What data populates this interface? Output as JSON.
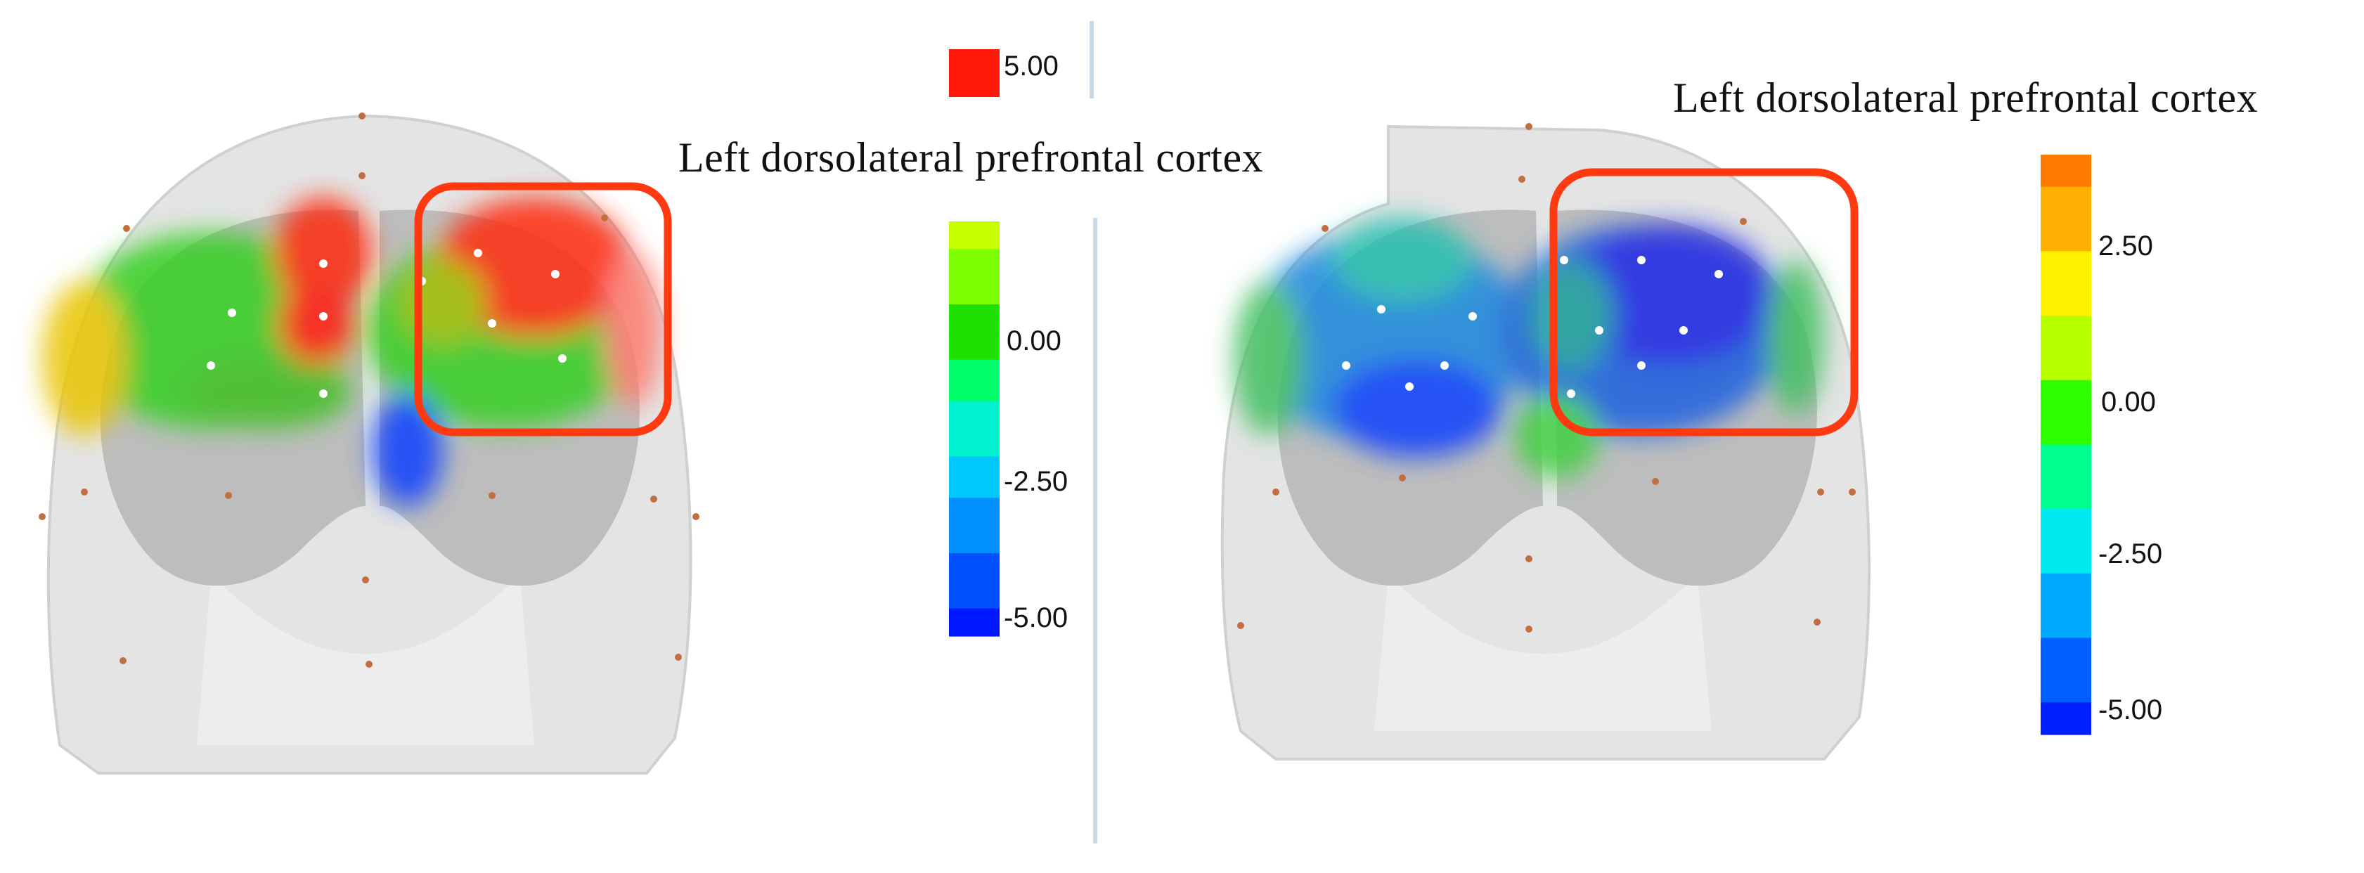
{
  "panels": [
    {
      "roi_label": "Left dorsolateral prefrontal cortex",
      "colorbar": {
        "ticks": [
          "5.00",
          "0.00",
          "-2.50",
          "-5.00"
        ],
        "colors": [
          "#c8ff00",
          "#7dff00",
          "#1fe000",
          "#00ff6a",
          "#00f0d0",
          "#00c8ff",
          "#0090ff",
          "#0050ff",
          "#0018ff"
        ],
        "max_swatch_color": "#ff1a0a"
      }
    },
    {
      "roi_label": "Left dorsolateral prefrontal cortex",
      "colorbar": {
        "ticks": [
          "2.50",
          "0.00",
          "-2.50",
          "-5.00"
        ],
        "colors": [
          "#ff7a00",
          "#ffb000",
          "#fff000",
          "#b8ff00",
          "#2bff00",
          "#00ff90",
          "#00e8f0",
          "#00a8ff",
          "#0060ff",
          "#0020ff"
        ]
      }
    }
  ]
}
